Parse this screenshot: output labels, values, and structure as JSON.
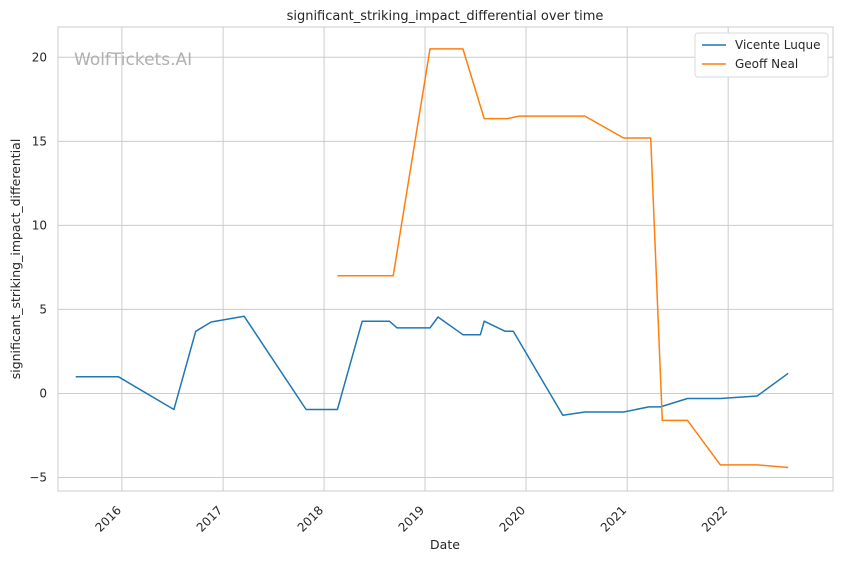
{
  "chart_data": {
    "type": "line",
    "title": "significant_striking_impact_differential over time",
    "xlabel": "Date",
    "ylabel": "significant_striking_impact_differential",
    "watermark": "WolfTickets.AI",
    "x_ticks": [
      "2016",
      "2017",
      "2018",
      "2019",
      "2020",
      "2021",
      "2022"
    ],
    "y_ticks": [
      -5,
      0,
      5,
      10,
      15,
      20
    ],
    "xlim": [
      "2015-05-15",
      "2023-01-15"
    ],
    "ylim": [
      -5.8,
      21.8
    ],
    "grid": true,
    "legend_position": "top-right",
    "series": [
      {
        "name": "Vicente Luque",
        "color": "#1f77b4",
        "points": [
          [
            "2015-07-18",
            1.0
          ],
          [
            "2015-12-19",
            1.0
          ],
          [
            "2016-07-07",
            -0.95
          ],
          [
            "2016-09-24",
            3.7
          ],
          [
            "2016-11-19",
            4.25
          ],
          [
            "2017-03-18",
            4.6
          ],
          [
            "2017-10-28",
            -0.95
          ],
          [
            "2018-02-18",
            -0.95
          ],
          [
            "2018-05-19",
            4.3
          ],
          [
            "2018-08-25",
            4.3
          ],
          [
            "2018-09-22",
            3.9
          ],
          [
            "2019-01-19",
            3.9
          ],
          [
            "2019-02-17",
            4.55
          ],
          [
            "2019-05-18",
            3.5
          ],
          [
            "2019-07-20",
            3.5
          ],
          [
            "2019-08-03",
            4.3
          ],
          [
            "2019-10-18",
            3.7
          ],
          [
            "2019-11-16",
            3.7
          ],
          [
            "2020-05-13",
            -1.3
          ],
          [
            "2020-08-01",
            -1.1
          ],
          [
            "2020-12-19",
            -1.1
          ],
          [
            "2021-03-20",
            -0.8
          ],
          [
            "2021-05-01",
            -0.8
          ],
          [
            "2021-08-07",
            -0.3
          ],
          [
            "2021-12-04",
            -0.3
          ],
          [
            "2022-04-16",
            -0.15
          ],
          [
            "2022-08-06",
            1.2
          ]
        ]
      },
      {
        "name": "Geoff Neal",
        "color": "#ff7f0e",
        "points": [
          [
            "2018-02-18",
            7.0
          ],
          [
            "2018-09-08",
            7.0
          ],
          [
            "2019-01-19",
            20.5
          ],
          [
            "2019-05-18",
            20.5
          ],
          [
            "2019-08-03",
            16.35
          ],
          [
            "2019-10-26",
            16.35
          ],
          [
            "2019-12-07",
            16.5
          ],
          [
            "2020-08-01",
            16.5
          ],
          [
            "2020-12-19",
            15.2
          ],
          [
            "2021-03-27",
            15.2
          ],
          [
            "2021-05-08",
            -1.6
          ],
          [
            "2021-08-07",
            -1.6
          ],
          [
            "2021-12-04",
            -4.25
          ],
          [
            "2022-04-16",
            -4.25
          ],
          [
            "2022-08-06",
            -4.4
          ]
        ]
      }
    ]
  }
}
